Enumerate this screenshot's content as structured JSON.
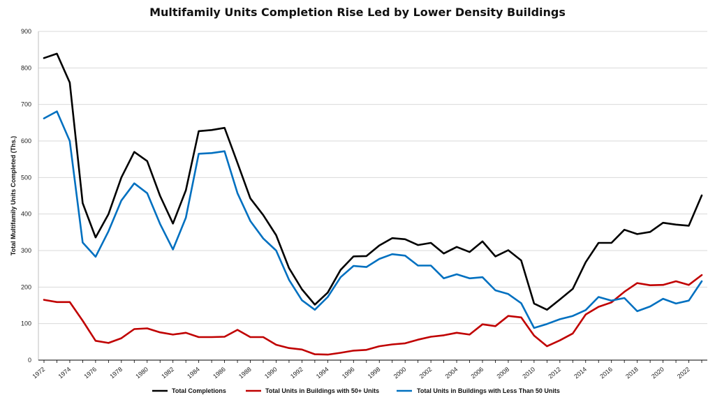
{
  "chart_data": {
    "type": "line",
    "title": "Multifamily Units Completion Rise Led by Lower Density Buildings",
    "xlabel": "",
    "ylabel": "Total Multifamily Units Completed (Ths.)",
    "ylim": [
      0,
      900
    ],
    "yticks": [
      0,
      100,
      200,
      300,
      400,
      500,
      600,
      700,
      800,
      900
    ],
    "xticks": [
      1972,
      1974,
      1976,
      1978,
      1980,
      1982,
      1984,
      1986,
      1988,
      1990,
      1992,
      1994,
      1996,
      1998,
      2000,
      2002,
      2004,
      2006,
      2008,
      2010,
      2012,
      2014,
      2016,
      2018,
      2020,
      2022
    ],
    "grid": true,
    "legend_position": "bottom",
    "x": [
      1972,
      1973,
      1974,
      1975,
      1976,
      1977,
      1978,
      1979,
      1980,
      1981,
      1982,
      1983,
      1984,
      1985,
      1986,
      1987,
      1988,
      1989,
      1990,
      1991,
      1992,
      1993,
      1994,
      1995,
      1996,
      1997,
      1998,
      1999,
      2000,
      2001,
      2002,
      2003,
      2004,
      2005,
      2006,
      2007,
      2008,
      2009,
      2010,
      2011,
      2012,
      2013,
      2014,
      2015,
      2016,
      2017,
      2018,
      2019,
      2020,
      2021,
      2022,
      2023
    ],
    "series": [
      {
        "name": "Total Completions",
        "color": "#000000",
        "values": [
          827,
          839,
          760,
          430,
          336,
          400,
          500,
          570,
          545,
          450,
          374,
          465,
          627,
          630,
          636,
          540,
          443,
          397,
          342,
          252,
          194,
          152,
          185,
          247,
          284,
          285,
          314,
          334,
          331,
          315,
          321,
          292,
          310,
          296,
          325,
          284,
          301,
          273,
          155,
          138,
          166,
          195,
          268,
          321,
          321,
          357,
          345,
          351,
          376,
          371,
          368,
          451
        ]
      },
      {
        "name": "Total Units in Buildings with 50+ Units",
        "color": "#c00000",
        "values": [
          165,
          159,
          159,
          108,
          53,
          47,
          60,
          85,
          87,
          76,
          70,
          75,
          63,
          63,
          64,
          83,
          63,
          63,
          42,
          33,
          29,
          16,
          15,
          20,
          26,
          28,
          38,
          43,
          46,
          56,
          64,
          68,
          75,
          70,
          98,
          93,
          121,
          117,
          67,
          38,
          54,
          73,
          125,
          146,
          158,
          187,
          211,
          205,
          206,
          216,
          206,
          233
        ]
      },
      {
        "name": "Total Units in Buildings with Less Than 50 Units",
        "color": "#0070c0",
        "values": [
          662,
          681,
          600,
          322,
          283,
          353,
          437,
          484,
          457,
          373,
          303,
          390,
          565,
          567,
          572,
          457,
          381,
          333,
          300,
          220,
          164,
          138,
          173,
          227,
          258,
          255,
          277,
          290,
          286,
          259,
          259,
          224,
          235,
          224,
          227,
          191,
          181,
          156,
          88,
          99,
          112,
          121,
          137,
          173,
          163,
          170,
          134,
          147,
          168,
          155,
          163,
          216
        ]
      }
    ]
  }
}
